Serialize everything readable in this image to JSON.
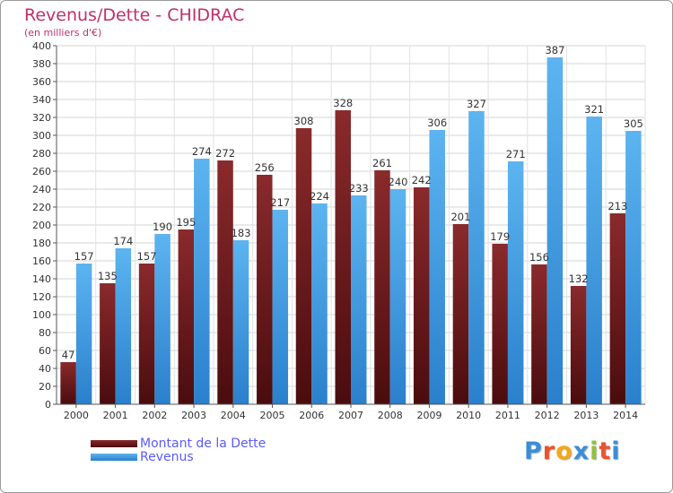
{
  "title": "Revenus/Dette - CHIDRAC",
  "subtitle": "(en milliers d'€)",
  "logo": {
    "text": "Proxiti",
    "letters": [
      "P",
      "r",
      "o",
      "x",
      "i",
      "t",
      "i"
    ],
    "colors": [
      "#3a8ed6",
      "#e8542c",
      "#f2a81d",
      "#3a8ed6",
      "#8fc23e",
      "#e8542c",
      "#3a8ed6"
    ]
  },
  "chart_data": {
    "type": "bar",
    "categories": [
      "2000",
      "2001",
      "2002",
      "2003",
      "2004",
      "2005",
      "2006",
      "2007",
      "2008",
      "2009",
      "2010",
      "2011",
      "2012",
      "2013",
      "2014"
    ],
    "series": [
      {
        "name": "Montant de la Dette",
        "color": "#7a1f22",
        "values": [
          47,
          135,
          157,
          195,
          272,
          256,
          308,
          328,
          261,
          242,
          201,
          179,
          156,
          132,
          213
        ]
      },
      {
        "name": "Revenus",
        "color": "#3aa0e8",
        "values": [
          157,
          174,
          190,
          274,
          183,
          217,
          224,
          233,
          240,
          306,
          327,
          271,
          387,
          321,
          305
        ]
      }
    ],
    "data_labels": [
      [
        "47",
        "135",
        "157",
        "195",
        "272",
        "256",
        "308",
        "328",
        "261",
        "242",
        "201",
        "179",
        "156",
        "132",
        "213"
      ],
      [
        "157",
        "174",
        "190",
        "274",
        "183",
        "217",
        "224",
        "233",
        "240",
        "306",
        "327",
        "271",
        "387",
        "321",
        "305"
      ]
    ],
    "ylim": [
      0,
      400
    ],
    "yticks": [
      "0",
      "20",
      "40",
      "60",
      "80",
      "100",
      "120",
      "140",
      "160",
      "180",
      "200",
      "220",
      "240",
      "260",
      "280",
      "300",
      "320",
      "340",
      "360",
      "380",
      "400"
    ],
    "grid": true,
    "legend_position": "bottom-left"
  }
}
